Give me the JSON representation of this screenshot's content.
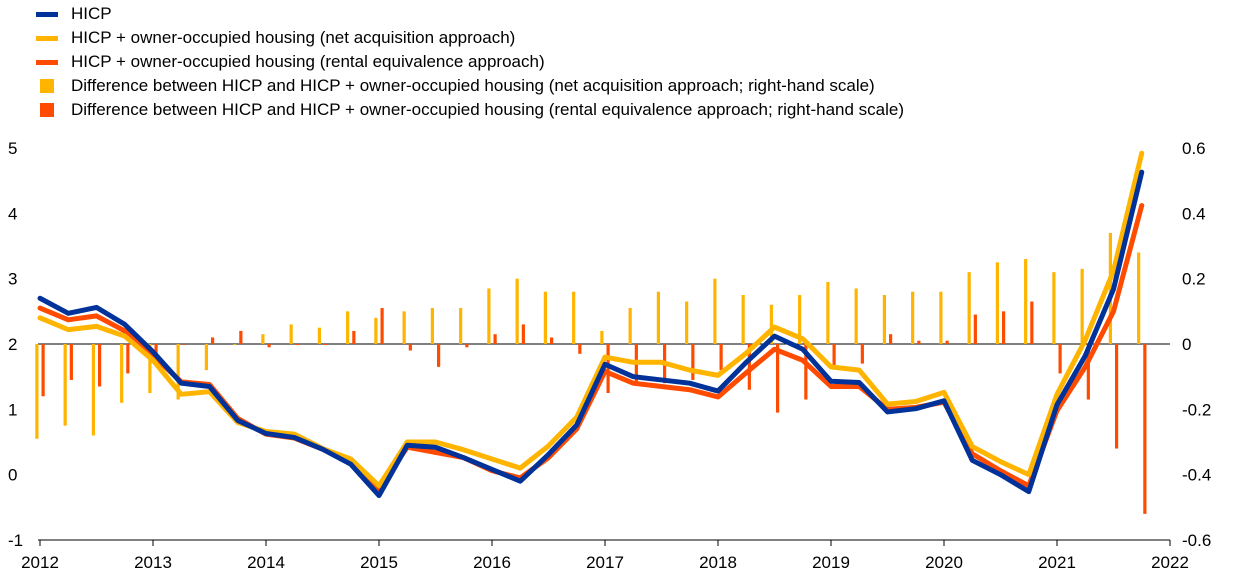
{
  "legend": [
    {
      "label": "HICP",
      "color": "#003299",
      "kind": "line"
    },
    {
      "label": "HICP + owner-occupied housing (net acquisition approach)",
      "color": "#FFB400",
      "kind": "line"
    },
    {
      "label": "HICP + owner-occupied housing (rental equivalence approach)",
      "color": "#FF4B00",
      "kind": "line"
    },
    {
      "label": "Difference between HICP and HICP + owner-occupied housing (net acquisition approach; right-hand scale)",
      "color": "#FFB400",
      "kind": "box"
    },
    {
      "label": "Difference between HICP and HICP + owner-occupied housing (rental equivalence approach; right-hand scale)",
      "color": "#FF4B00",
      "kind": "box"
    }
  ],
  "chart_data": {
    "type": "line",
    "left_axis": {
      "ylim": [
        -1,
        5
      ],
      "ticks": [
        "5",
        "4",
        "3",
        "2",
        "1",
        "0",
        "-1"
      ]
    },
    "right_axis": {
      "ylim": [
        -0.6,
        0.6
      ],
      "ticks": [
        "0.6",
        "0.4",
        "0.2",
        "0",
        "-0.2",
        "-0.4",
        "-0.6"
      ]
    },
    "x_ticks": [
      "2012",
      "2013",
      "2014",
      "2015",
      "2016",
      "2017",
      "2018",
      "2019",
      "2020",
      "2021",
      "2022"
    ],
    "x": [
      "2012 Q1",
      "2012 Q2",
      "2012 Q3",
      "2012 Q4",
      "2013 Q1",
      "2013 Q2",
      "2013 Q3",
      "2013 Q4",
      "2014 Q1",
      "2014 Q2",
      "2014 Q3",
      "2014 Q4",
      "2015 Q1",
      "2015 Q2",
      "2015 Q3",
      "2015 Q4",
      "2016 Q1",
      "2016 Q2",
      "2016 Q3",
      "2016 Q4",
      "2017 Q1",
      "2017 Q2",
      "2017 Q3",
      "2017 Q4",
      "2018 Q1",
      "2018 Q2",
      "2018 Q3",
      "2018 Q4",
      "2019 Q1",
      "2019 Q2",
      "2019 Q3",
      "2019 Q4",
      "2020 Q1",
      "2020 Q2",
      "2020 Q3",
      "2020 Q4",
      "2021 Q1",
      "2021 Q2",
      "2021 Q3",
      "2021 Q4"
    ],
    "series": [
      {
        "name": "HICP",
        "axis": "left",
        "color": "#003299",
        "values": [
          2.7,
          2.47,
          2.56,
          2.3,
          1.88,
          1.4,
          1.35,
          0.83,
          0.63,
          0.57,
          0.39,
          0.16,
          -0.32,
          0.45,
          0.42,
          0.26,
          0.08,
          -0.1,
          0.31,
          0.76,
          1.69,
          1.5,
          1.45,
          1.4,
          1.28,
          1.72,
          2.12,
          1.92,
          1.43,
          1.41,
          0.96,
          1.01,
          1.13,
          0.22,
          0.0,
          -0.26,
          1.07,
          1.82,
          2.84,
          4.63
        ]
      },
      {
        "name": "HICP + owner-occupied housing (net acquisition approach)",
        "axis": "left",
        "color": "#FFB400",
        "values": [
          2.4,
          2.22,
          2.27,
          2.12,
          1.75,
          1.23,
          1.27,
          0.8,
          0.66,
          0.62,
          0.4,
          0.24,
          -0.17,
          0.5,
          0.5,
          0.38,
          0.24,
          0.1,
          0.44,
          0.88,
          1.8,
          1.72,
          1.72,
          1.6,
          1.52,
          1.86,
          2.26,
          2.08,
          1.65,
          1.6,
          1.08,
          1.12,
          1.26,
          0.43,
          0.2,
          0.0,
          1.23,
          2.06,
          3.12,
          4.92
        ]
      },
      {
        "name": "HICP + owner-occupied housing (rental equivalence approach)",
        "axis": "left",
        "color": "#FF4B00",
        "values": [
          2.55,
          2.37,
          2.43,
          2.2,
          1.82,
          1.42,
          1.38,
          0.86,
          0.62,
          0.56,
          0.39,
          0.22,
          -0.22,
          0.42,
          0.34,
          0.26,
          0.06,
          -0.05,
          0.26,
          0.7,
          1.58,
          1.4,
          1.35,
          1.3,
          1.19,
          1.56,
          1.92,
          1.75,
          1.35,
          1.35,
          1.0,
          1.03,
          1.11,
          0.32,
          0.06,
          -0.17,
          0.98,
          1.65,
          2.5,
          4.12
        ]
      },
      {
        "name": "Difference between HICP and HICP + owner-occupied housing (net acquisition approach; right-hand scale)",
        "axis": "right",
        "color": "#FFB400",
        "values": [
          -0.29,
          -0.25,
          -0.28,
          -0.18,
          -0.15,
          -0.17,
          -0.08,
          0.0,
          0.03,
          0.06,
          0.05,
          0.1,
          0.08,
          0.1,
          0.11,
          0.11,
          0.17,
          0.2,
          0.16,
          0.16,
          0.04,
          0.11,
          0.16,
          0.13,
          0.2,
          0.15,
          0.12,
          0.15,
          0.19,
          0.17,
          0.15,
          0.16,
          0.16,
          0.22,
          0.25,
          0.26,
          0.22,
          0.23,
          0.34,
          0.28
        ]
      },
      {
        "name": "Difference between HICP and HICP + owner-occupied housing (rental equivalence approach; right-hand scale)",
        "axis": "right",
        "color": "#FF4B00",
        "values": [
          -0.16,
          -0.11,
          -0.13,
          -0.09,
          -0.04,
          0.0,
          0.02,
          0.04,
          -0.01,
          0.0,
          0.0,
          0.04,
          0.11,
          -0.02,
          -0.07,
          -0.01,
          0.03,
          0.06,
          0.02,
          -0.03,
          -0.15,
          -0.12,
          -0.12,
          -0.11,
          -0.08,
          -0.14,
          -0.21,
          -0.17,
          -0.07,
          -0.06,
          0.03,
          0.01,
          0.01,
          0.09,
          0.1,
          0.13,
          -0.09,
          -0.17,
          -0.32,
          -0.52
        ]
      }
    ],
    "grid": false,
    "legend_position": "top-left"
  }
}
